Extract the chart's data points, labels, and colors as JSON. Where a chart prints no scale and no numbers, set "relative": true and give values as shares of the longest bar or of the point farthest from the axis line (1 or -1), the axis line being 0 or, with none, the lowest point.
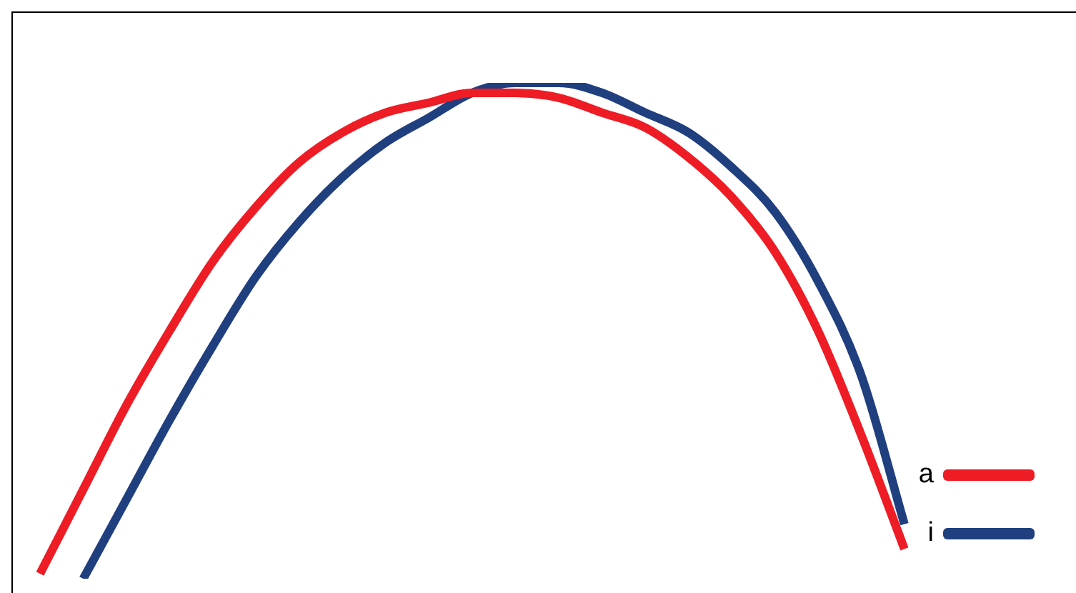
{
  "chart_data": {
    "type": "line",
    "relative": true,
    "legend": "bottom right",
    "marker": "none",
    "line_style": "solid",
    "categories": [
      null,
      null,
      null,
      null,
      null,
      null,
      null,
      null,
      null,
      null,
      null,
      null,
      null,
      null,
      null,
      null,
      null,
      null,
      null,
      null,
      null
    ],
    "series": [
      {
        "name": "a",
        "color": "#ee1c25",
        "values": [
          0.01,
          0.18,
          0.35,
          0.5,
          0.64,
          0.75,
          0.84,
          0.9,
          0.94,
          0.96,
          0.98,
          0.98,
          0.97,
          0.94,
          0.91,
          0.85,
          0.77,
          0.66,
          0.5,
          0.29,
          0.06
        ]
      },
      {
        "name": "i",
        "color": "#1f3f7f",
        "values": [
          null,
          0.0,
          0.16,
          0.32,
          0.47,
          0.61,
          0.72,
          0.81,
          0.88,
          0.93,
          0.98,
          1.0,
          1.0,
          0.98,
          0.94,
          0.9,
          0.83,
          0.74,
          0.6,
          0.41,
          0.11
        ]
      }
    ]
  }
}
